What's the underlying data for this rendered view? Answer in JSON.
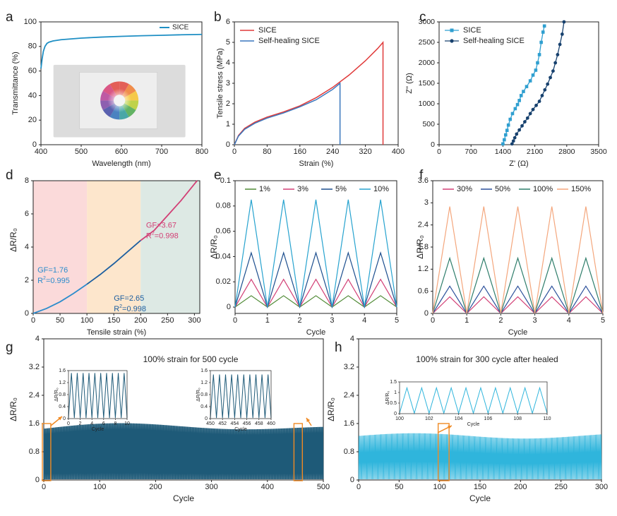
{
  "panel_letters": [
    "a",
    "b",
    "c",
    "d",
    "e",
    "f",
    "g",
    "h"
  ],
  "chart_data": [
    {
      "panel": "a",
      "type": "line",
      "xlabel": "Wavelength (nm)",
      "ylabel": "Transmittance (%)",
      "xlim": [
        400,
        800
      ],
      "ylim": [
        0,
        100
      ],
      "xticks": [
        400,
        500,
        600,
        700,
        800
      ],
      "yticks": [
        0,
        20,
        40,
        60,
        80,
        100
      ],
      "legend_position": "top-right",
      "series": [
        {
          "name": "SICE",
          "color": "#1f8fc4",
          "x": [
            400,
            403,
            406,
            410,
            415,
            420,
            430,
            450,
            500,
            550,
            600,
            650,
            700,
            750,
            800
          ],
          "y": [
            62,
            70,
            76,
            80,
            82.5,
            83.5,
            84.5,
            85.5,
            86.8,
            87.6,
            88.2,
            88.7,
            89.1,
            89.5,
            89.8
          ]
        }
      ],
      "inset": {
        "type": "photo",
        "icon": "color-wheel-photo"
      }
    },
    {
      "panel": "b",
      "type": "line",
      "xlabel": "Strain (%)",
      "ylabel": "Tensile stress (MPa)",
      "xlim": [
        0,
        400
      ],
      "ylim": [
        0,
        6
      ],
      "xticks": [
        0,
        80,
        160,
        240,
        320,
        400
      ],
      "yticks": [
        0,
        1,
        2,
        3,
        4,
        5,
        6
      ],
      "legend_position": "top-left",
      "series": [
        {
          "name": "SICE",
          "color": "#e03a3a",
          "x": [
            0,
            10,
            25,
            50,
            80,
            120,
            160,
            200,
            240,
            280,
            320,
            350,
            363,
            363
          ],
          "y": [
            0,
            0.45,
            0.8,
            1.1,
            1.35,
            1.6,
            1.9,
            2.3,
            2.8,
            3.4,
            4.1,
            4.7,
            5.0,
            0
          ]
        },
        {
          "name": "Self-healing SICE",
          "color": "#3a77bd",
          "x": [
            0,
            10,
            25,
            50,
            80,
            120,
            160,
            200,
            240,
            258,
            258
          ],
          "y": [
            0,
            0.42,
            0.75,
            1.05,
            1.3,
            1.55,
            1.85,
            2.2,
            2.7,
            3.0,
            0
          ]
        }
      ]
    },
    {
      "panel": "c",
      "type": "scatter",
      "xlabel": "Z' (Ω)",
      "ylabel": "Z'' (Ω)",
      "xlim": [
        0,
        3500
      ],
      "ylim": [
        0,
        3000
      ],
      "xticks": [
        0,
        700,
        1400,
        2100,
        2800,
        3500
      ],
      "yticks": [
        0,
        500,
        1000,
        1500,
        2000,
        2500,
        3000
      ],
      "legend_position": "top-left",
      "series": [
        {
          "name": "SICE",
          "color": "#2f9fd0",
          "marker": "square",
          "x": [
            1400,
            1430,
            1460,
            1490,
            1520,
            1560,
            1610,
            1670,
            1720,
            1760,
            1800,
            1850,
            1920,
            2000,
            2060,
            2120,
            2160,
            2200,
            2240,
            2280,
            2310
          ],
          "y": [
            20,
            120,
            240,
            350,
            480,
            620,
            760,
            880,
            980,
            1080,
            1200,
            1300,
            1420,
            1560,
            1700,
            1820,
            2000,
            2200,
            2500,
            2750,
            2900
          ]
        },
        {
          "name": "Self-healing SICE",
          "color": "#17416e",
          "marker": "circle",
          "x": [
            1600,
            1630,
            1660,
            1700,
            1760,
            1820,
            1880,
            1940,
            2000,
            2060,
            2130,
            2200,
            2260,
            2320,
            2380,
            2440,
            2500,
            2550,
            2600,
            2650,
            2700,
            2740
          ],
          "y": [
            20,
            90,
            170,
            260,
            360,
            460,
            560,
            650,
            760,
            860,
            960,
            1060,
            1200,
            1340,
            1480,
            1640,
            1800,
            2000,
            2200,
            2450,
            2700,
            3000
          ]
        }
      ]
    },
    {
      "panel": "d",
      "type": "line",
      "xlabel": "Tensile strain (%)",
      "ylabel": "ΔR/R₀",
      "xlim": [
        0,
        310
      ],
      "ylim": [
        0,
        8
      ],
      "xticks": [
        0,
        50,
        100,
        150,
        200,
        250,
        300
      ],
      "yticks": [
        0,
        2,
        4,
        6,
        8
      ],
      "regions": [
        {
          "x0": 0,
          "x1": 100,
          "color": "#fbdada"
        },
        {
          "x0": 100,
          "x1": 200,
          "color": "#fde6cc"
        },
        {
          "x0": 200,
          "x1": 310,
          "color": "#dde9e4"
        }
      ],
      "annotations": [
        {
          "gf": "GF=1.76",
          "r2": "0.995",
          "color": "#2b8ccc",
          "x": 8,
          "y": 2.6
        },
        {
          "gf": "GF=2.65",
          "r2": "0.998",
          "color": "#1d5fa0",
          "x": 150,
          "y": 0.9
        },
        {
          "gf": "GF=3.67",
          "r2": "0.998",
          "color": "#d23f75",
          "x": 210,
          "y": 5.3
        }
      ],
      "series": [
        {
          "name": "0-100%",
          "color": "#2b8ccc",
          "x": [
            0,
            25,
            50,
            75,
            100
          ],
          "y": [
            0,
            0.3,
            0.7,
            1.2,
            1.76
          ]
        },
        {
          "name": "100-200%",
          "color": "#1d5fa0",
          "x": [
            100,
            125,
            150,
            175,
            200
          ],
          "y": [
            1.76,
            2.35,
            3.0,
            3.7,
            4.4
          ]
        },
        {
          "name": "200-300%",
          "color": "#d23f75",
          "x": [
            200,
            225,
            250,
            275,
            300,
            305
          ],
          "y": [
            4.4,
            5.0,
            5.9,
            6.8,
            7.8,
            8.0
          ]
        }
      ]
    },
    {
      "panel": "e",
      "type": "line",
      "xlabel": "Cycle",
      "ylabel": "ΔR/R₀",
      "xlim": [
        0,
        5
      ],
      "ylim": [
        -0.005,
        0.1
      ],
      "xticks": [
        0,
        1,
        2,
        3,
        4,
        5
      ],
      "yticks": [
        0,
        0.02,
        0.04,
        0.06,
        0.08,
        0.1
      ],
      "ytick_labels": [
        "0",
        "0.02",
        "0.04",
        "0.06",
        "0.08",
        "0.1"
      ],
      "legend_position": "top",
      "peaks_per_cycle": 1,
      "series": [
        {
          "name": "1%",
          "color": "#4f8a35",
          "peak": 0.009
        },
        {
          "name": "3%",
          "color": "#d23f75",
          "peak": 0.022
        },
        {
          "name": "5%",
          "color": "#1c4e8e",
          "peak": 0.043
        },
        {
          "name": "10%",
          "color": "#27a3cf",
          "peak": 0.085
        }
      ]
    },
    {
      "panel": "f",
      "type": "line",
      "xlabel": "Cycle",
      "ylabel": "ΔR/R₀",
      "xlim": [
        0,
        5
      ],
      "ylim": [
        0,
        3.6
      ],
      "xticks": [
        0,
        1,
        2,
        3,
        4,
        5
      ],
      "yticks": [
        0,
        0.6,
        1.2,
        1.8,
        2.4,
        3,
        3.6
      ],
      "ytick_labels": [
        "0",
        "0.6",
        "1.2",
        "1.8",
        "2.4",
        "3",
        "3.6"
      ],
      "legend_position": "top",
      "series": [
        {
          "name": "30%",
          "color": "#d23f75",
          "peak": 0.45
        },
        {
          "name": "50%",
          "color": "#2a4f9a",
          "peak": 0.74
        },
        {
          "name": "100%",
          "color": "#2e7d6a",
          "peak": 1.5
        },
        {
          "name": "150%",
          "color": "#f4a67c",
          "peak": 2.9
        }
      ]
    },
    {
      "panel": "g",
      "type": "line",
      "title": "100% strain for 500 cycle",
      "xlabel": "Cycle",
      "ylabel": "ΔR/R₀",
      "xlim": [
        0,
        500
      ],
      "ylim": [
        0,
        4
      ],
      "xticks": [
        0,
        100,
        200,
        300,
        400,
        500
      ],
      "yticks": [
        0,
        0.8,
        1.6,
        2.4,
        3.2,
        4
      ],
      "ytick_labels": [
        "0",
        "0.8",
        "1.6",
        "2.4",
        "3.2",
        "4"
      ],
      "color": "#1e5a78",
      "peak": 1.5,
      "highlight_windows": [
        [
          0,
          10
        ],
        [
          450,
          460
        ]
      ],
      "insets": [
        {
          "xlim": [
            0,
            10
          ],
          "ylim": [
            0,
            1.6
          ],
          "xticks": [
            0,
            2,
            4,
            6,
            8,
            10
          ],
          "yticks": [
            0,
            0.4,
            0.8,
            1.2,
            1.6
          ],
          "ytick_labels": [
            "0",
            "0.4",
            "0.8",
            "1.2",
            "1.6"
          ],
          "peak": 1.5,
          "xlabel": "Cycle",
          "ylabel": "ΔR/R₀"
        },
        {
          "xlim": [
            450,
            460
          ],
          "ylim": [
            0,
            1.6
          ],
          "xticks": [
            450,
            452,
            454,
            456,
            458,
            460
          ],
          "yticks": [
            0,
            0.4,
            0.8,
            1.2,
            1.6
          ],
          "ytick_labels": [
            "0",
            "0.4",
            "0.8",
            "1.2",
            "1.6"
          ],
          "peak": 1.45,
          "xlabel": "Cycle",
          "ylabel": "ΔR/R₀"
        }
      ]
    },
    {
      "panel": "h",
      "type": "line",
      "title": "100% strain for 300 cycle after healed",
      "xlabel": "Cycle",
      "ylabel": "ΔR/R₀",
      "xlim": [
        0,
        300
      ],
      "ylim": [
        0,
        4
      ],
      "xticks": [
        0,
        50,
        100,
        150,
        200,
        250,
        300
      ],
      "yticks": [
        0,
        0.8,
        1.6,
        2.4,
        3.2,
        4
      ],
      "ytick_labels": [
        "0",
        "0.8",
        "1.6",
        "2.4",
        "3.2",
        "4"
      ],
      "color": "#2fb5dc",
      "peak": 1.25,
      "highlight_windows": [
        [
          100,
          110
        ]
      ],
      "insets": [
        {
          "xlim": [
            100,
            110
          ],
          "ylim": [
            0,
            1.5
          ],
          "xticks": [
            100,
            102,
            104,
            106,
            108,
            110
          ],
          "yticks": [
            0,
            0.5,
            1,
            1.5
          ],
          "ytick_labels": [
            "0",
            "0.5",
            "1",
            "1.5"
          ],
          "peak": 1.2,
          "xlabel": "Cycle",
          "ylabel": "ΔR/R₀"
        }
      ]
    }
  ]
}
